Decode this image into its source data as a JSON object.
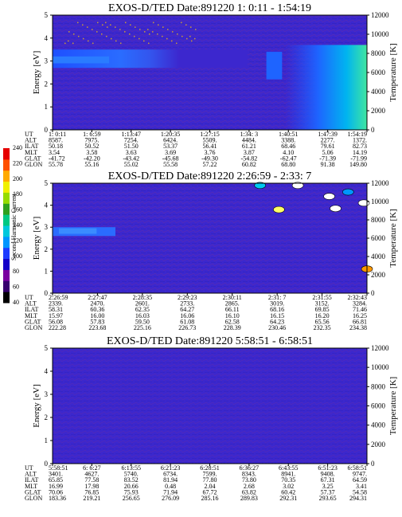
{
  "colors": {
    "background": "#3c27ce",
    "colorbar": [
      "#000000",
      "#37006e",
      "#7a00a0",
      "#1400c8",
      "#1e3cff",
      "#0096ff",
      "#00c8dc",
      "#00c882",
      "#2ea01e",
      "#96dc00",
      "#f0f000",
      "#ffaa00",
      "#ff5000",
      "#e60000"
    ]
  },
  "colorbar": {
    "label": "Second Harmonic Current",
    "ticks": [
      "40",
      "60",
      "80",
      "100",
      "120",
      "140",
      "160",
      "180",
      "200",
      "220",
      "240"
    ]
  },
  "row_labels": [
    "UT",
    "ALT",
    "ILAT",
    "MLT",
    "GLAT",
    "GLON"
  ],
  "chart_data": [
    {
      "type": "heatmap",
      "title": "EXOS-D/TED   Date:891220   1: 0:11 - 1:54:19",
      "ylabel": "Energy [eV]",
      "y2label": "Temperature [K]",
      "ylim": [
        0,
        5
      ],
      "y2lim": [
        0,
        12000
      ],
      "yticks": [
        "0",
        "1",
        "2",
        "3",
        "4",
        "5"
      ],
      "y2ticks": [
        "0",
        "2000",
        "4000",
        "6000",
        "8000",
        "10000",
        "12000"
      ],
      "columns": [
        [
          "1: 0:11",
          "8587.",
          "50.18",
          "3.54",
          "-41.72",
          "55.78"
        ],
        [
          "1: 6:59",
          "7975.",
          "50.52",
          "3.58",
          "-42.20",
          "55.16"
        ],
        [
          "1:13:47",
          "7254.",
          "51.50",
          "3.63",
          "-43.42",
          "55.02"
        ],
        [
          "1:20:35",
          "6424.",
          "53.37",
          "3.69",
          "-45.68",
          "55.58"
        ],
        [
          "1:27:15",
          "5509.",
          "56.41",
          "3.76",
          "-49.30",
          "57.22"
        ],
        [
          "1:34: 3",
          "4484.",
          "61.21",
          "3.87",
          "-54.82",
          "60.82"
        ],
        [
          "1:40:51",
          "3388.",
          "68.46",
          "4.10",
          "-62.47",
          "68.80"
        ],
        [
          "1:47:39",
          "2277.",
          "79.61",
          "5.06",
          "-71.39",
          "91.38"
        ],
        [
          "1:54:19",
          "1372.",
          "82.73",
          "14.19",
          "-71.99",
          "149.80"
        ]
      ]
    },
    {
      "type": "heatmap",
      "title": "EXOS-D/TED   Date:891220   2:26:59 - 2:33: 7",
      "ylabel": "Energy [eV]",
      "y2label": "Temperature [K]",
      "ylim": [
        0,
        5
      ],
      "y2lim": [
        0,
        12000
      ],
      "yticks": [
        "0",
        "1",
        "2",
        "3",
        "4",
        "5"
      ],
      "y2ticks": [
        "0",
        "2000",
        "4000",
        "6000",
        "8000",
        "10000",
        "12000"
      ],
      "columns": [
        [
          "2:26:59",
          "2339.",
          "58.31",
          "15.97",
          "56.08",
          "222.28"
        ],
        [
          "2:27:47",
          "2470.",
          "60.36",
          "16.00",
          "57.83",
          "223.68"
        ],
        [
          "2:28:35",
          "2601.",
          "62.35",
          "16.03",
          "59.50",
          "225.16"
        ],
        [
          "2:29:23",
          "2733.",
          "64.27",
          "16.06",
          "61.08",
          "226.73"
        ],
        [
          "2:30:11",
          "2865.",
          "66.11",
          "16.10",
          "62.58",
          "228.39"
        ],
        [
          "2:31: 7",
          "3019.",
          "68.16",
          "16.15",
          "64.23",
          "230.46"
        ],
        [
          "2:31:55",
          "3152.",
          "69.85",
          "16.20",
          "65.56",
          "232.35"
        ],
        [
          "2:32:43",
          "3284.",
          "71.46",
          "16.25",
          "66.81",
          "234.38"
        ]
      ]
    },
    {
      "type": "heatmap",
      "title": "EXOS-D/TED   Date:891220   5:58:51 - 6:58:51",
      "ylabel": "Energy [eV]",
      "y2label": "Temperature [K]",
      "ylim": [
        0,
        5
      ],
      "y2lim": [
        0,
        12000
      ],
      "yticks": [
        "0",
        "1",
        "2",
        "3",
        "4",
        "5"
      ],
      "y2ticks": [
        "0",
        "2000",
        "4000",
        "6000",
        "8000",
        "10000",
        "12000"
      ],
      "columns": [
        [
          "5:58:51",
          "3401.",
          "65.85",
          "16.99",
          "70.06",
          "183.36"
        ],
        [
          "6: 6:27",
          "4627.",
          "77.58",
          "17.98",
          "76.85",
          "219.21"
        ],
        [
          "6:13:55",
          "5740.",
          "83.52",
          "20.66",
          "75.93",
          "256.65"
        ],
        [
          "6:21:23",
          "6734.",
          "81.94",
          "0.48",
          "71.94",
          "276.09"
        ],
        [
          "6:28:51",
          "7599.",
          "77.80",
          "2.04",
          "67.72",
          "285.16"
        ],
        [
          "6:36:27",
          "8343.",
          "73.80",
          "2.68",
          "63.82",
          "289.83"
        ],
        [
          "6:43:55",
          "8941.",
          "70.35",
          "3.02",
          "60.42",
          "292.31"
        ],
        [
          "6:51:23",
          "9408.",
          "67.31",
          "3.25",
          "57.37",
          "293.65"
        ],
        [
          "6:58:51",
          "9747.",
          "64.59",
          "3.41",
          "54.58",
          "294.31"
        ]
      ]
    }
  ]
}
